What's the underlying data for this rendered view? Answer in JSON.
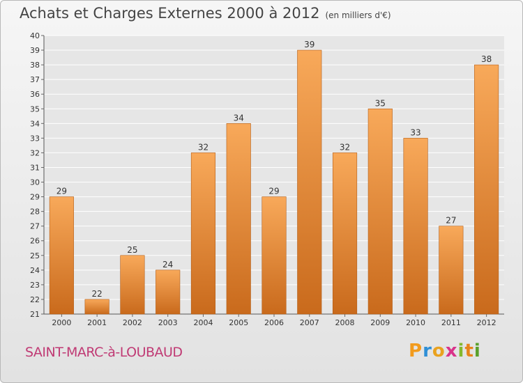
{
  "header": {
    "title": "Achats et Charges Externes 2000 à 2012",
    "unit": "(en milliers d'€)"
  },
  "footer": {
    "town": "SAINT-MARC-à-LOUBAUD",
    "logo": {
      "letters": [
        "P",
        "r",
        "o",
        "x",
        "i",
        "t",
        "i"
      ],
      "colors": [
        "#f29b1d",
        "#2e8fd6",
        "#e9a21f",
        "#d9338a",
        "#84b82d",
        "#e8831b",
        "#5aa02c"
      ]
    }
  },
  "chart_data": {
    "type": "bar",
    "categories": [
      "2000",
      "2001",
      "2002",
      "2003",
      "2004",
      "2005",
      "2006",
      "2007",
      "2008",
      "2009",
      "2010",
      "2011",
      "2012"
    ],
    "values": [
      29,
      22,
      25,
      24,
      32,
      34,
      29,
      39,
      32,
      35,
      33,
      27,
      38
    ],
    "ylim": [
      21,
      40
    ],
    "yticks": [
      21,
      22,
      23,
      24,
      25,
      26,
      27,
      28,
      29,
      30,
      31,
      32,
      33,
      34,
      35,
      36,
      37,
      38,
      39,
      40
    ],
    "grid": true,
    "data_labels": true,
    "bar_color_top": "#f8a95a",
    "bar_color_bottom": "#c96a1c",
    "gridline_color": "#ffffff"
  }
}
